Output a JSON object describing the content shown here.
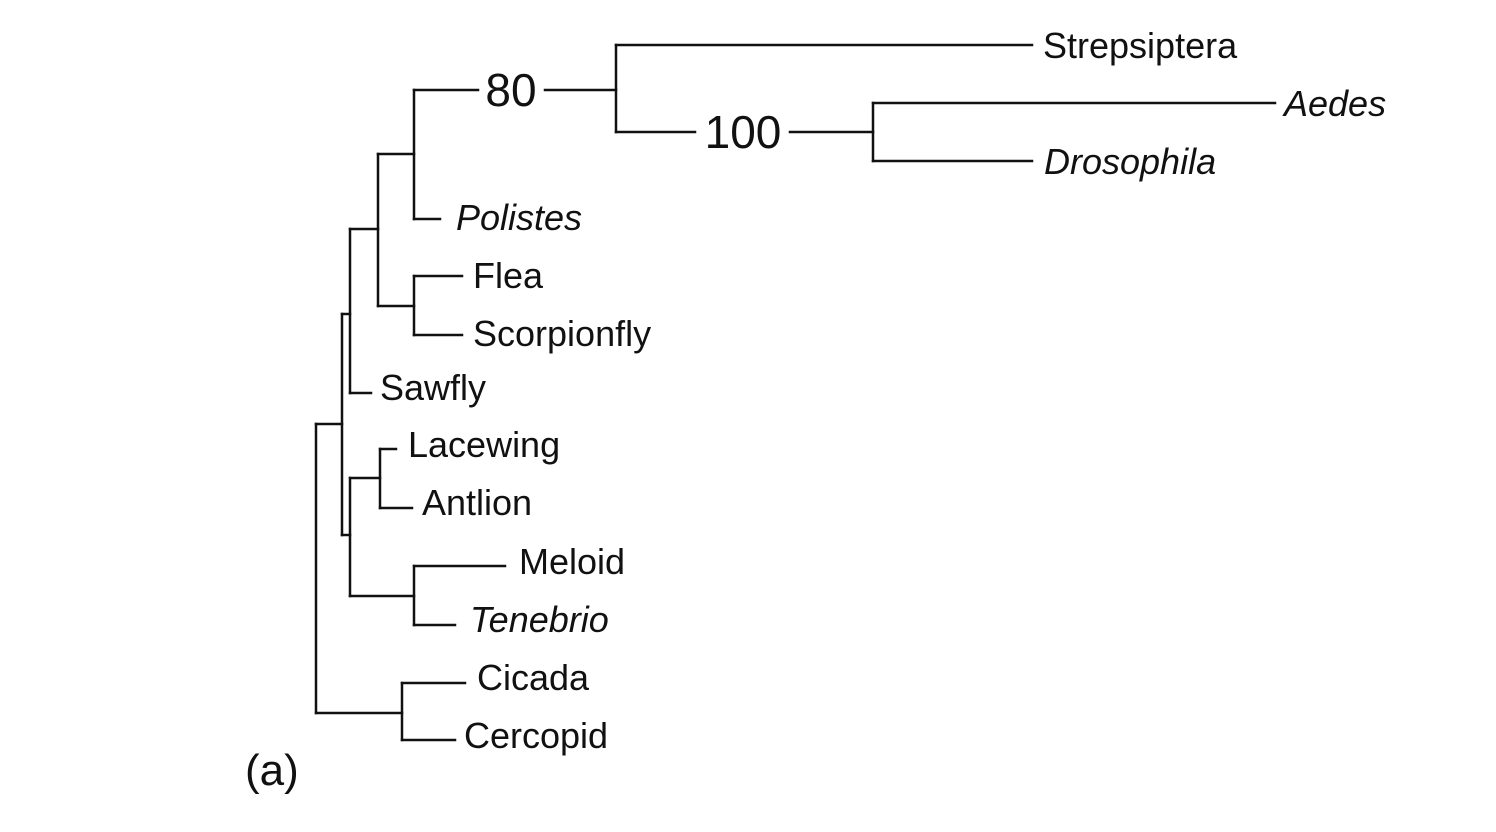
{
  "panel_label": "(a)",
  "support_values": {
    "node_strepsiptera_flies": "80",
    "node_aedes_drosophila": "100"
  },
  "taxa": {
    "strepsiptera": "Strepsiptera",
    "aedes": "Aedes",
    "drosophila": "Drosophila",
    "polistes": "Polistes",
    "flea": "Flea",
    "scorpionfly": "Scorpionfly",
    "sawfly": "Sawfly",
    "lacewing": "Lacewing",
    "antlion": "Antlion",
    "meloid": "Meloid",
    "tenebrio": "Tenebrio",
    "cicada": "Cicada",
    "cercopid": "Cercopid"
  },
  "colors": {
    "ink": "#111111",
    "background": "#ffffff"
  }
}
